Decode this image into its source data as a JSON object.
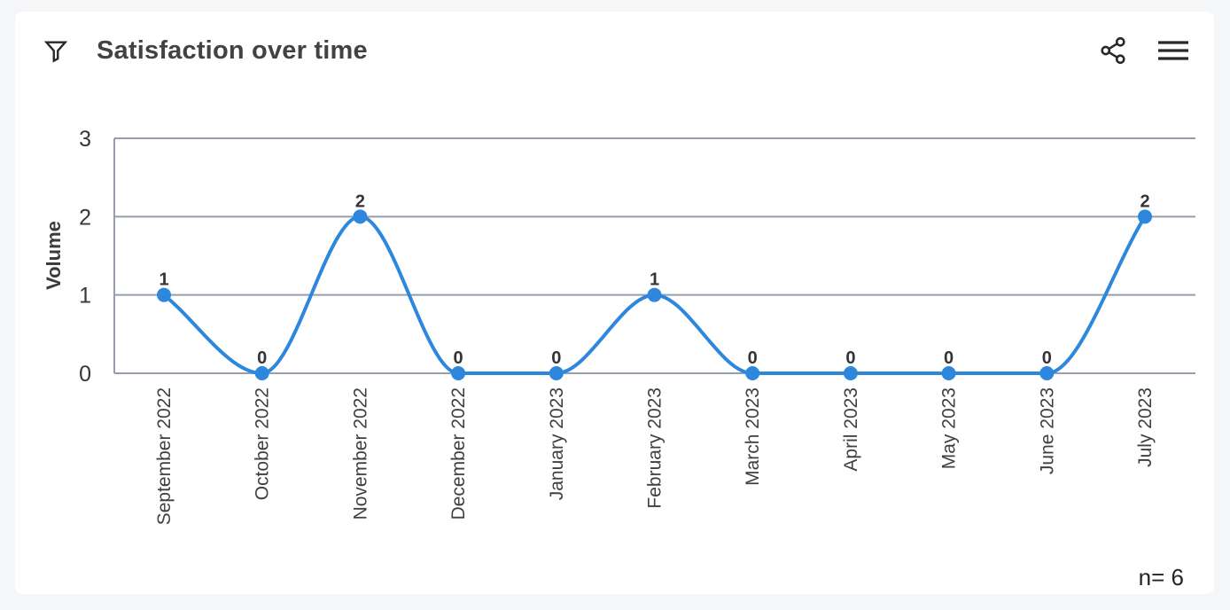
{
  "header": {
    "title": "Satisfaction over time"
  },
  "footer": {
    "n_label": "n= 6"
  },
  "colors": {
    "line": "#2d87dc",
    "grid": "#989dab",
    "tick_text": "#363739",
    "value_text": "#333437",
    "category_text": "#3e4043",
    "icon": "#27282a",
    "card_bg": "#ffffff",
    "page_bg": "#f5f6f8"
  },
  "chart_data": {
    "type": "line",
    "title": "Satisfaction over time",
    "xlabel": "",
    "ylabel": "Volume",
    "categories": [
      "September 2022",
      "October 2022",
      "November 2022",
      "December 2022",
      "January 2023",
      "February 2023",
      "March 2023",
      "April 2023",
      "May 2023",
      "June 2023",
      "July 2023"
    ],
    "values": [
      1,
      0,
      2,
      0,
      0,
      1,
      0,
      0,
      0,
      0,
      2
    ],
    "series_name": "Volume",
    "ylim": [
      0,
      3
    ],
    "yticks": [
      0,
      1,
      2,
      3
    ],
    "grid": true,
    "legend": false,
    "point_labels": true,
    "line_shape": "monotone",
    "n": 6
  }
}
